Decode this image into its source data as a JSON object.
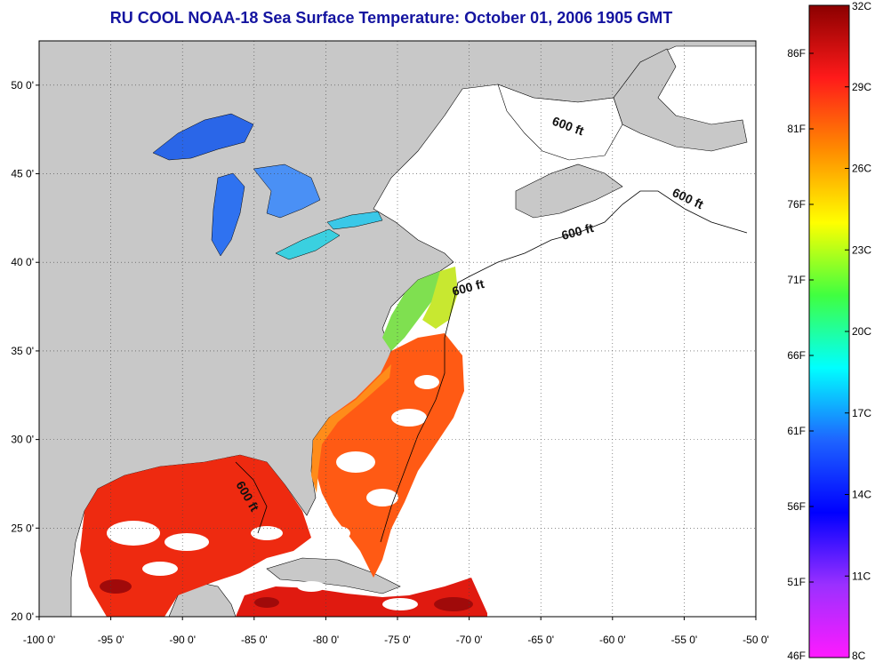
{
  "title": "RU COOL  NOAA-18  Sea Surface Temperature:  October 01, 2006 1905 GMT",
  "map": {
    "lon_range": [
      -100,
      -50
    ],
    "lat_range": [
      20,
      52.5
    ],
    "lon_ticks": [
      "-100 0'",
      "-95 0'",
      "-90 0'",
      "-85 0'",
      "-80 0'",
      "-75 0'",
      "-70 0'",
      "-65 0'",
      "-60 0'",
      "-55 0'",
      "-50 0'"
    ],
    "lat_ticks": [
      "20 0'",
      "25 0'",
      "30 0'",
      "35 0'",
      "40 0'",
      "45 0'",
      "50 0'"
    ],
    "contour_label": "600 ft",
    "land_color": "#c8c8c8",
    "ocean_no_data_color": "#ffffff",
    "grid": "dotted"
  },
  "colorbar": {
    "range_c": [
      8,
      32
    ],
    "celsius_labels": [
      "32C",
      "29C",
      "26C",
      "23C",
      "20C",
      "17C",
      "14C",
      "11C",
      "8C"
    ],
    "fahrenheit_labels": [
      "86F",
      "81F",
      "76F",
      "71F",
      "66F",
      "61F",
      "56F",
      "51F",
      "46F"
    ],
    "colors": [
      "#8b0000",
      "#ff1a1a",
      "#ff8c00",
      "#ffff00",
      "#40ff40",
      "#00ffff",
      "#1e64ff",
      "#0000ff",
      "#9b30ff",
      "#ff1aff"
    ]
  }
}
